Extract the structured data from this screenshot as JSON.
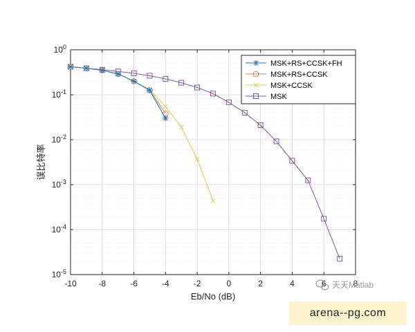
{
  "chart_data": {
    "type": "line",
    "xlabel": "Eb/No (dB)",
    "ylabel": "误比特率",
    "xlim": [
      -10,
      8
    ],
    "ylim_log10": [
      -5,
      0
    ],
    "yscale": "log",
    "grid": true,
    "legend_position": "top-right",
    "x_ticks": [
      "-10",
      "-8",
      "-6",
      "-4",
      "-2",
      "0",
      "2",
      "4",
      "6",
      "8"
    ],
    "y_ticks": [
      {
        "base": "10",
        "exp": "0"
      },
      {
        "base": "10",
        "exp": "-1"
      },
      {
        "base": "10",
        "exp": "-2"
      },
      {
        "base": "10",
        "exp": "-3"
      },
      {
        "base": "10",
        "exp": "-4"
      },
      {
        "base": "10",
        "exp": "-5"
      }
    ],
    "series": [
      {
        "name": "MSK+RS+CCSK+FH",
        "marker": "asterisk",
        "color": "#1f77b4",
        "x": [
          -10,
          -9,
          -8,
          -7,
          -6,
          -5,
          -4
        ],
        "y": [
          0.42,
          0.39,
          0.35,
          0.29,
          0.2,
          0.125,
          0.03
        ]
      },
      {
        "name": "MSK+RS+CCSK",
        "marker": "circle",
        "color": "#d9805a",
        "x": [
          -10,
          -9,
          -8,
          -7,
          -6,
          -5,
          -4
        ],
        "y": [
          0.42,
          0.39,
          0.35,
          0.29,
          0.2,
          0.127,
          0.038
        ]
      },
      {
        "name": "MSK+CCSK",
        "marker": "x",
        "color": "#d8cf55",
        "x": [
          -10,
          -9,
          -8,
          -7,
          -6,
          -5,
          -4,
          -3,
          -2,
          -1
        ],
        "y": [
          0.42,
          0.39,
          0.35,
          0.29,
          0.2,
          0.13,
          0.055,
          0.019,
          0.0037,
          0.00044
        ]
      },
      {
        "name": "MSK",
        "marker": "square",
        "color": "#7e5a9b",
        "x": [
          -10,
          -9,
          -8,
          -7,
          -6,
          -5,
          -4,
          -3,
          -2,
          -1,
          0,
          1,
          2,
          3,
          4,
          5,
          6,
          7
        ],
        "y": [
          0.42,
          0.39,
          0.36,
          0.33,
          0.3,
          0.265,
          0.225,
          0.185,
          0.145,
          0.106,
          0.068,
          0.04,
          0.021,
          0.0092,
          0.0034,
          0.00125,
          0.000175,
          2.25e-05
        ]
      }
    ]
  },
  "watermark": {
    "text": "天天Matlab",
    "icon": "wechat-icon"
  },
  "banner": {
    "text": "arena--pg.com",
    "background": "#fdf3cd"
  }
}
